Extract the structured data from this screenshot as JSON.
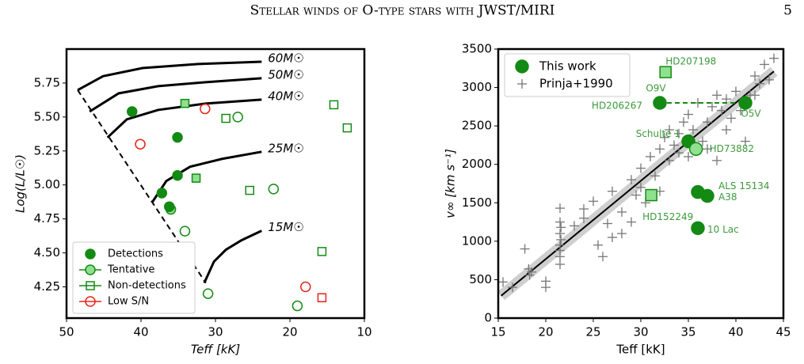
{
  "header": {
    "title": "Stellar winds of O-type stars with JWST/MIRI",
    "page": "5"
  },
  "chart_data": [
    {
      "type": "scatter",
      "xlabel": "Teff [kK]",
      "ylabel": "Log(L/L☉)",
      "xlim": [
        50,
        10
      ],
      "ylim": [
        4.02,
        6.0
      ],
      "xticks": [
        50,
        40,
        30,
        20,
        10
      ],
      "yticks": [
        4.25,
        {
          "value": 4.5,
          "label": "4.50"
        },
        4.75,
        {
          "value": 5.0,
          "label": "5.00"
        },
        5.25,
        {
          "value": 5.5,
          "label": "5.50"
        },
        5.75
      ],
      "legend": "lower left",
      "tracks": [
        {
          "label": "60M☉",
          "x": [
            48.5,
            45.1,
            39.8,
            32.3,
            23.8
          ],
          "y": [
            5.698,
            5.8,
            5.86,
            5.89,
            5.907
          ]
        },
        {
          "label": "50M☉",
          "x": [
            46.9,
            43.0,
            37.7,
            31.3,
            23.8
          ],
          "y": [
            5.54,
            5.674,
            5.727,
            5.756,
            5.785
          ]
        },
        {
          "label": "40M☉",
          "x": [
            44.5,
            41.9,
            37.7,
            31.3,
            23.8
          ],
          "y": [
            5.349,
            5.483,
            5.552,
            5.599,
            5.628
          ]
        },
        {
          "label": "25M☉",
          "x": [
            38.5,
            36.6,
            33.4,
            29.1,
            23.8
          ],
          "y": [
            4.872,
            5.029,
            5.134,
            5.192,
            5.244
          ]
        },
        {
          "label": "15M☉",
          "x": [
            31.5,
            30.2,
            28.6,
            26.5,
            23.8
          ],
          "y": [
            4.279,
            4.436,
            4.523,
            4.593,
            4.663
          ]
        }
      ],
      "zams": {
        "x": [
          48.5,
          31.3
        ],
        "y": [
          5.698,
          4.279
        ]
      },
      "series": [
        {
          "name": "Detections",
          "color": "#138a13",
          "marker": "o",
          "fill": "#138a13",
          "x": [
            41.2,
            35.1,
            35.1,
            37.2,
            36.2
          ],
          "y": [
            5.54,
            5.35,
            5.07,
            4.94,
            4.84
          ]
        },
        {
          "name": "Tentative",
          "color": "#138a13",
          "marker": "o",
          "fill": "#90e090",
          "x": [
            36.0
          ],
          "y": [
            4.82
          ]
        },
        {
          "name": "Non-detections",
          "color": "#138a13",
          "marker": "s",
          "fill": "none",
          "x": [
            28.6,
            25.4,
            14.1,
            12.3,
            15.7
          ],
          "y": [
            5.49,
            4.96,
            5.59,
            5.42,
            4.51
          ]
        },
        {
          "name": "Low S/N",
          "color": "#e8231b",
          "marker": "o",
          "fill": "none",
          "x": [
            40.1,
            31.4,
            17.9
          ],
          "y": [
            5.3,
            5.56,
            4.25
          ]
        },
        {
          "color": "#138a13",
          "marker": "o",
          "fill": "none",
          "x": [
            27.0,
            22.2,
            34.1,
            31.0,
            19.0
          ],
          "y": [
            5.5,
            4.97,
            4.66,
            4.2,
            4.11
          ]
        },
        {
          "color": "#138a13",
          "marker": "s",
          "fill": "#90e090",
          "x": [
            34.1,
            32.6
          ],
          "y": [
            5.6,
            5.05
          ]
        },
        {
          "color": "#e8231b",
          "marker": "s",
          "fill": "none",
          "x": [
            15.7
          ],
          "y": [
            4.17
          ]
        }
      ]
    },
    {
      "type": "scatter",
      "xlabel": "Teff [kK]",
      "ylabel": "v∞ [km s⁻¹]",
      "xlim": [
        15,
        45
      ],
      "ylim": [
        0,
        3500
      ],
      "xticks": [
        15,
        20,
        25,
        30,
        35,
        40,
        45
      ],
      "yticks": [
        0,
        500,
        1000,
        1500,
        2000,
        2500,
        3000,
        3500
      ],
      "legend": "upper left",
      "annotation": "HD206267",
      "fit": {
        "color": "#000000",
        "x": [
          15.3,
          44
        ],
        "y": [
          290,
          3210
        ]
      },
      "series": [
        {
          "name": "This work",
          "color": "#138a13",
          "marker": "o",
          "fill": "#138a13",
          "x": [
            32.0,
            41.0,
            32.6,
            35.0,
            35.8,
            36.0,
            37.0,
            36.0,
            31.1
          ],
          "y": [
            2800,
            2800,
            3200,
            2300,
            2200,
            1640,
            1590,
            1170,
            1600
          ],
          "labels": [
            "O9V",
            "O5V",
            "HD207198",
            "Schulte 1",
            "HD73882",
            "ALS 15134",
            "A38",
            "10 Lac",
            "HD152249"
          ],
          "markers": [
            "o",
            "o",
            "s",
            "o",
            "o",
            "o",
            "o",
            "o",
            "s"
          ],
          "fills": [
            "#138a13",
            "#138a13",
            "#90e090",
            "#138a13",
            "#90e090",
            "#138a13",
            "#138a13",
            "#138a13",
            "#90e090"
          ]
        },
        {
          "name": "Prinja+1990",
          "color": "#777777",
          "marker": "+",
          "x": [
            15.5,
            16.5,
            17.8,
            18.2,
            18.3,
            18.5,
            20.0,
            20.0,
            21.5,
            21.5,
            21.5,
            21.5,
            21.5,
            21.5,
            21.5,
            21.6,
            21.6,
            23.0,
            24.0,
            24.0,
            25.0,
            25.5,
            26.0,
            26.5,
            27.0,
            27.0,
            28.0,
            28.0,
            29.0,
            29.0,
            29.5,
            30.0,
            30.0,
            30.5,
            31.0,
            31.5,
            32.0,
            32.0,
            32.5,
            33.0,
            33.0,
            33.5,
            34.0,
            34.0,
            34.5,
            35.0,
            35.0,
            35.5,
            36.0,
            36.5,
            37.0,
            37.0,
            37.5,
            38.0,
            38.0,
            38.5,
            39.0,
            39.0,
            39.5,
            40.0,
            40.5,
            41.0,
            41.5,
            42.0,
            42.0,
            42.5,
            43.0,
            43.5,
            44.0
          ],
          "y": [
            470,
            400,
            900,
            640,
            560,
            600,
            480,
            400,
            1430,
            1250,
            1100,
            950,
            880,
            800,
            700,
            1180,
            1020,
            1200,
            1420,
            1300,
            1520,
            950,
            800,
            1230,
            1650,
            1050,
            1380,
            1100,
            1800,
            1250,
            1600,
            1950,
            1700,
            1500,
            2100,
            1850,
            2200,
            1650,
            2350,
            2450,
            2050,
            2250,
            2400,
            2150,
            2550,
            2650,
            2100,
            2450,
            2800,
            2300,
            2550,
            2200,
            2750,
            2900,
            2050,
            2700,
            2850,
            2450,
            2600,
            2950,
            2700,
            2300,
            2900,
            3150,
            2900,
            3050,
            3300,
            3100,
            3380
          ]
        }
      ]
    }
  ]
}
